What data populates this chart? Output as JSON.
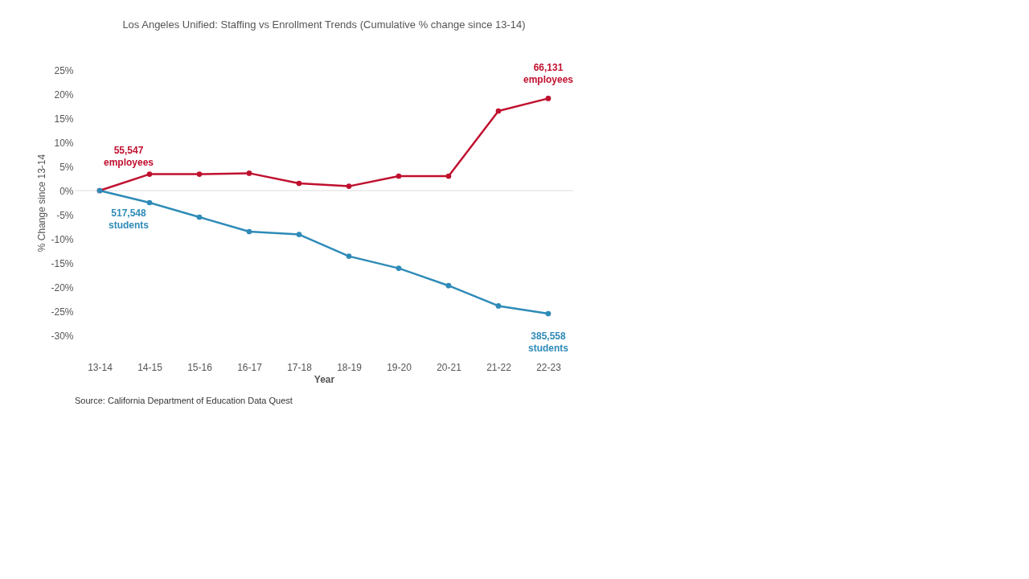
{
  "chart_data": {
    "type": "line",
    "title": "Los Angeles Unified: Staffing vs Enrollment Trends (Cumulative % change since 13-14)",
    "xlabel": "Year",
    "ylabel": "% Change since 13-14",
    "categories": [
      "13-14",
      "14-15",
      "15-16",
      "16-17",
      "17-18",
      "18-19",
      "19-20",
      "20-21",
      "21-22",
      "22-23"
    ],
    "series": [
      {
        "color": "#c0102f",
        "values": [
          0,
          3.4,
          3.4,
          3.6,
          1.5,
          0.9,
          3.0,
          3.0,
          16.5,
          19.1
        ]
      },
      {
        "color": "#2e8bb8",
        "values": [
          0,
          -2.5,
          -5.5,
          -8.5,
          -9.1,
          -13.6,
          -16.1,
          -19.7,
          -23.9,
          -25.5
        ]
      }
    ],
    "ylim": [
      -30,
      25
    ],
    "yticks": [
      {
        "value": -30,
        "label": "-30%"
      },
      {
        "value": -25,
        "label": "-25%"
      },
      {
        "value": -20,
        "label": "-20%"
      },
      {
        "value": -15,
        "label": "-15%"
      },
      {
        "value": -10,
        "label": "-10%"
      },
      {
        "value": -5,
        "label": "-5%"
      },
      {
        "value": 0,
        "label": "0%"
      },
      {
        "value": 5,
        "label": "5%"
      },
      {
        "value": 10,
        "label": "10%"
      },
      {
        "value": 15,
        "label": "15%"
      },
      {
        "value": 20,
        "label": "20%"
      },
      {
        "value": 25,
        "label": "25%"
      }
    ],
    "ref_lines": [
      {
        "axis": "y",
        "value": 0,
        "color": "#eeeeee"
      }
    ],
    "marker": "circle",
    "line_style": "solid",
    "grid": false,
    "annotations": [
      {
        "text": "55,547 employees",
        "x": "13-14",
        "y": 0
      },
      {
        "text": "517,548 students",
        "x": "13-14",
        "y": 0
      },
      {
        "text": "66,131 employees",
        "x": "22-23",
        "y": 19.1
      },
      {
        "text": "385,558 students",
        "x": "22-23",
        "y": -25.5
      },
      "Source: California Department of Education Data Quest"
    ]
  }
}
